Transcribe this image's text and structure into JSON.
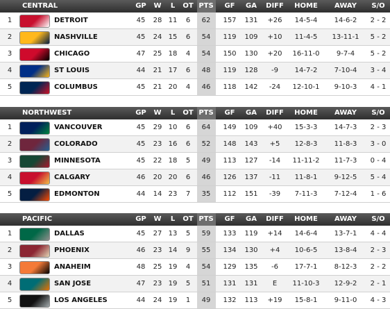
{
  "divisions": [
    {
      "name": "CENTRAL",
      "columns": [
        "GP",
        "W",
        "L",
        "OT",
        "PTS",
        "GF",
        "GA",
        "DIFF",
        "HOME",
        "AWAY",
        "S/O"
      ],
      "rows": [
        [
          1,
          "DETROIT",
          45,
          28,
          11,
          6,
          62,
          157,
          131,
          "+26",
          "14-5-4",
          "14-6-2",
          "2 - 2"
        ],
        [
          2,
          "NASHVILLE",
          45,
          24,
          15,
          6,
          54,
          119,
          109,
          "+10",
          "11-4-5",
          "13-11-1",
          "5 - 2"
        ],
        [
          3,
          "CHICAGO",
          47,
          25,
          18,
          4,
          54,
          150,
          130,
          "+20",
          "16-11-0",
          "9-7-4",
          "5 - 2"
        ],
        [
          4,
          "ST LOUIS",
          44,
          21,
          17,
          6,
          48,
          119,
          128,
          "-9",
          "14-7-2",
          "7-10-4",
          "3 - 4"
        ],
        [
          5,
          "COLUMBUS",
          45,
          21,
          20,
          4,
          46,
          118,
          142,
          "-24",
          "12-10-1",
          "9-10-3",
          "4 - 1"
        ]
      ]
    },
    {
      "name": "NORTHWEST",
      "columns": [
        "GP",
        "W",
        "L",
        "OT",
        "PTS",
        "GF",
        "GA",
        "DIFF",
        "HOME",
        "AWAY",
        "S/O"
      ],
      "rows": [
        [
          1,
          "VANCOUVER",
          45,
          29,
          10,
          6,
          64,
          149,
          109,
          "+40",
          "15-3-3",
          "14-7-3",
          "2 - 3"
        ],
        [
          2,
          "COLORADO",
          45,
          23,
          16,
          6,
          52,
          148,
          143,
          "+5",
          "12-8-3",
          "11-8-3",
          "3 - 0"
        ],
        [
          3,
          "MINNESOTA",
          45,
          22,
          18,
          5,
          49,
          113,
          127,
          "-14",
          "11-11-2",
          "11-7-3",
          "0 - 4"
        ],
        [
          4,
          "CALGARY",
          46,
          20,
          20,
          6,
          46,
          126,
          137,
          "-11",
          "11-8-1",
          "9-12-5",
          "5 - 4"
        ],
        [
          5,
          "EDMONTON",
          44,
          14,
          23,
          7,
          35,
          112,
          151,
          "-39",
          "7-11-3",
          "7-12-4",
          "1 - 6"
        ]
      ]
    },
    {
      "name": "PACIFIC",
      "columns": [
        "GP",
        "W",
        "L",
        "OT",
        "PTS",
        "GF",
        "GA",
        "DIFF",
        "HOME",
        "AWAY",
        "S/O"
      ],
      "rows": [
        [
          1,
          "DALLAS",
          45,
          27,
          13,
          5,
          59,
          133,
          119,
          "+14",
          "14-6-4",
          "13-7-1",
          "4 - 4"
        ],
        [
          2,
          "PHOENIX",
          46,
          23,
          14,
          9,
          55,
          134,
          130,
          "+4",
          "10-6-5",
          "13-8-4",
          "2 - 3"
        ],
        [
          3,
          "ANAHEIM",
          48,
          25,
          19,
          4,
          54,
          129,
          135,
          "-6",
          "17-7-1",
          "8-12-3",
          "2 - 2"
        ],
        [
          4,
          "SAN JOSE",
          47,
          23,
          19,
          5,
          51,
          131,
          131,
          "E",
          "11-10-3",
          "12-9-2",
          "2 - 1"
        ],
        [
          5,
          "LOS ANGELES",
          44,
          24,
          19,
          1,
          49,
          132,
          113,
          "+19",
          "15-8-1",
          "9-11-0",
          "4 - 3"
        ]
      ]
    }
  ]
}
